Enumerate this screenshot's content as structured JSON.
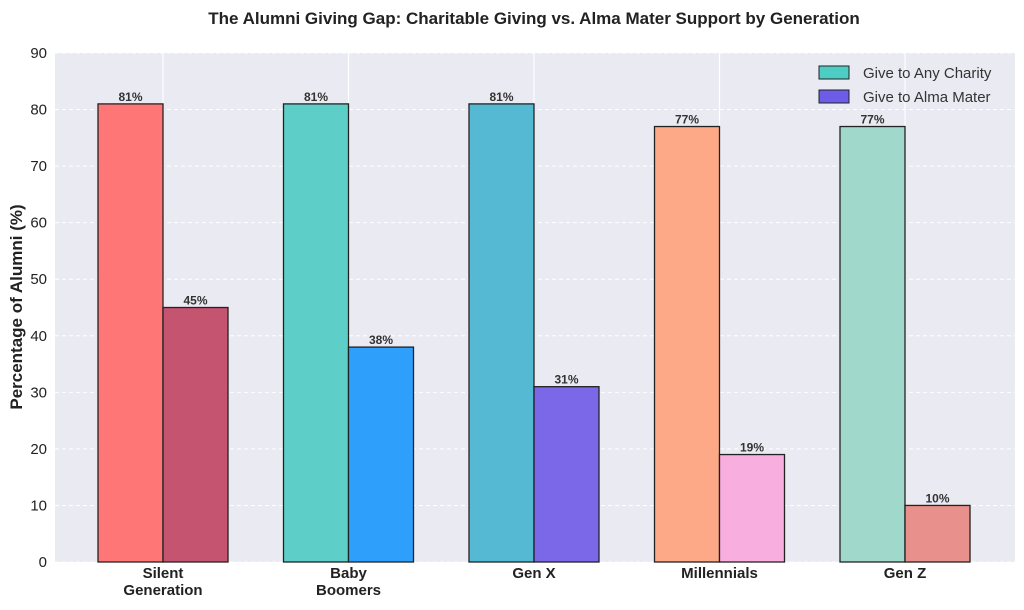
{
  "chart_data": {
    "type": "bar",
    "title": "The Alumni Giving Gap: Charitable Giving vs. Alma Mater Support by Generation",
    "xlabel": "",
    "ylabel": "Percentage of Alumni (%)",
    "ylim": [
      0,
      90
    ],
    "yticks": [
      "0",
      "10",
      "20",
      "30",
      "40",
      "50",
      "60",
      "70",
      "80",
      "90"
    ],
    "grid": true,
    "legend_placement": "top-right",
    "categories": [
      [
        "Silent",
        "Generation"
      ],
      [
        "Baby",
        "Boomers"
      ],
      [
        "Gen X"
      ],
      [
        "Millennials"
      ],
      [
        "Gen Z"
      ]
    ],
    "series": [
      {
        "name": "Give to Any Charity",
        "legend_color": "#4ECDC4",
        "values": [
          81,
          81,
          81,
          77,
          77
        ],
        "labels": [
          "81%",
          "81%",
          "81%",
          "77%",
          "77%"
        ],
        "colors": [
          "#FF7676",
          "#5ECFC8",
          "#55B9D3",
          "#FDA886",
          "#A0D8CC"
        ]
      },
      {
        "name": "Give to Alma Mater",
        "legend_color": "#6C5CE7",
        "values": [
          45,
          38,
          31,
          19,
          10
        ],
        "labels": [
          "45%",
          "38%",
          "31%",
          "19%",
          "10%"
        ],
        "colors": [
          "#C45470",
          "#2E9FFA",
          "#7B68E8",
          "#F9AEE0",
          "#E8908B"
        ]
      }
    ]
  }
}
